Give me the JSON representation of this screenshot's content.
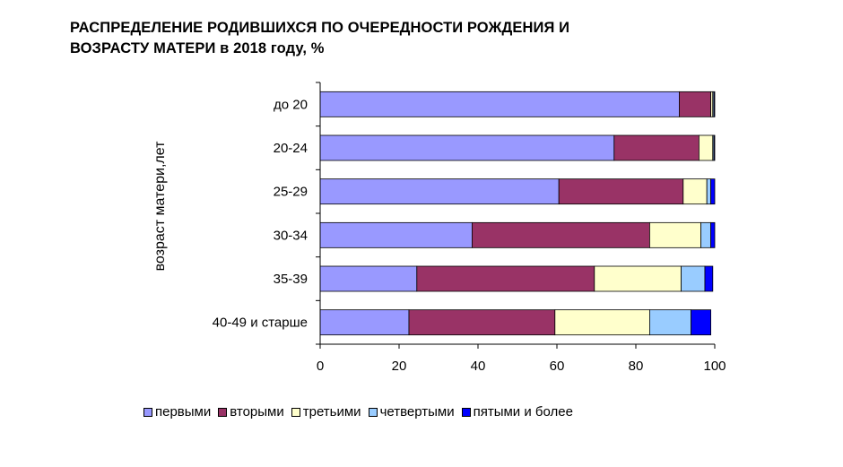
{
  "chart_data": {
    "type": "bar",
    "orientation": "horizontal",
    "stacked": true,
    "title_line1": "РАСПРЕДЕЛЕНИЕ РОДИВШИХСЯ ПО ОЧЕРЕДНОСТИ РОЖДЕНИЯ И",
    "title_line2": "ВОЗРАСТУ МАТЕРИ в 2018 году,  %",
    "ylabel": "возраст матери,лет",
    "xlabel": "",
    "xlim": [
      0,
      100
    ],
    "xticks": [
      "0",
      "20",
      "40",
      "60",
      "80",
      "100"
    ],
    "grid": false,
    "legend_position": "bottom",
    "categories": [
      "до 20",
      "20-24",
      "25-29",
      "30-34",
      "35-39",
      "40-49 и старше"
    ],
    "series": [
      {
        "name": "первыми",
        "color": "#9999ff",
        "values": [
          91.0,
          74.5,
          60.5,
          38.5,
          24.5,
          22.5
        ]
      },
      {
        "name": "вторыми",
        "color": "#993366",
        "values": [
          8.0,
          21.5,
          31.5,
          45.0,
          45.0,
          37.0
        ]
      },
      {
        "name": "третьими",
        "color": "#ffffcc",
        "values": [
          0.5,
          3.5,
          6.0,
          13.0,
          22.0,
          24.0
        ]
      },
      {
        "name": "четвертыми",
        "color": "#99ccff",
        "values": [
          0.3,
          0.3,
          1.0,
          2.5,
          6.0,
          10.5
        ]
      },
      {
        "name": "пятыми и более",
        "color": "#0000ff",
        "values": [
          0.2,
          0.2,
          1.0,
          1.0,
          2.0,
          5.0
        ]
      }
    ]
  }
}
